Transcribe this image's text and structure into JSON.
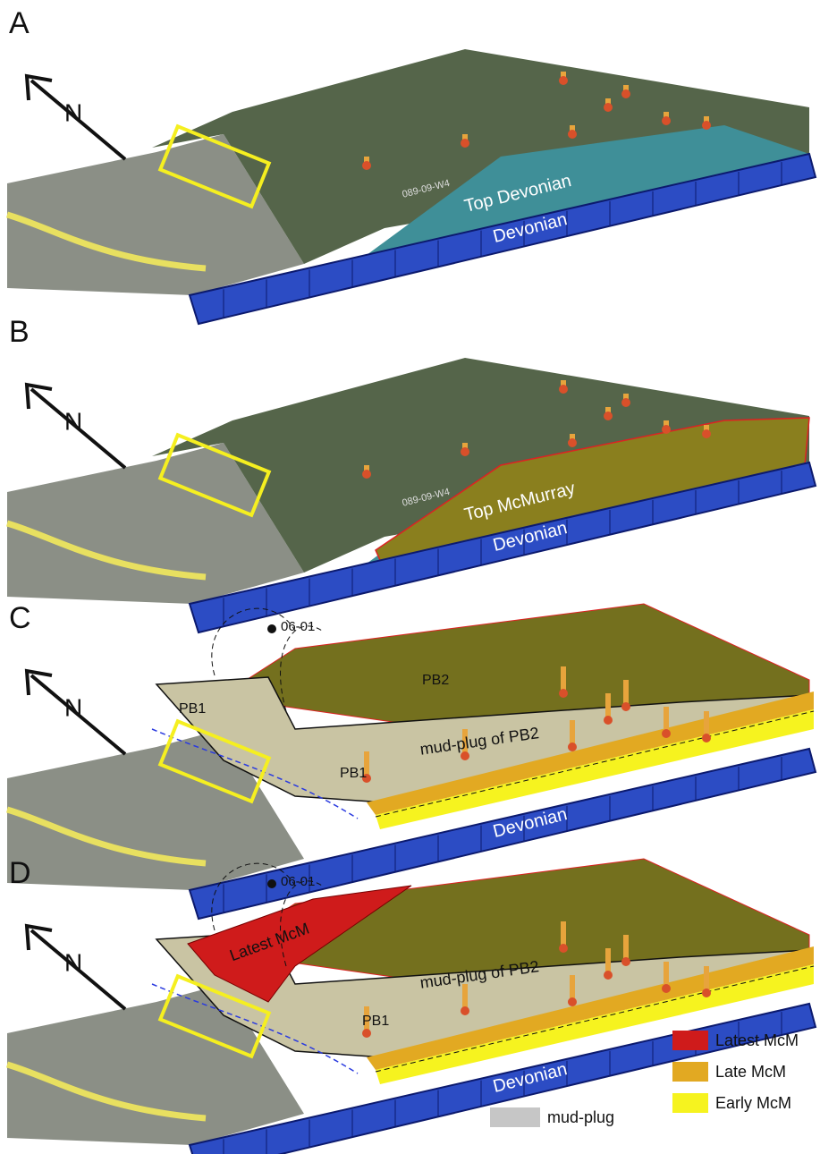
{
  "panels": [
    {
      "label": "A",
      "north": "N",
      "grid_label": "089-09-W4",
      "surface": "Top Devonian",
      "base": "Devonian"
    },
    {
      "label": "B",
      "north": "N",
      "grid_label": "089-09-W4",
      "surface": "Top McMurray",
      "base": "Devonian"
    },
    {
      "label": "C",
      "north": "N",
      "well": "06-01",
      "labels": [
        "PB2",
        "PB1",
        "PB1",
        "mud-plug of PB2"
      ],
      "base": "Devonian"
    },
    {
      "label": "D",
      "north": "N",
      "well": "06-01",
      "labels": [
        "Latest McM",
        "PB1",
        "mud-plug of PB2"
      ],
      "base": "Devonian"
    }
  ],
  "legend": [
    {
      "label": "Latest McM",
      "color": "#cf1b1b"
    },
    {
      "label": "Late McM",
      "color": "#e2a922"
    },
    {
      "label": "Early McM",
      "color": "#f6f31f"
    },
    {
      "label": "mud-plug",
      "color": "#c6c6c6"
    }
  ]
}
